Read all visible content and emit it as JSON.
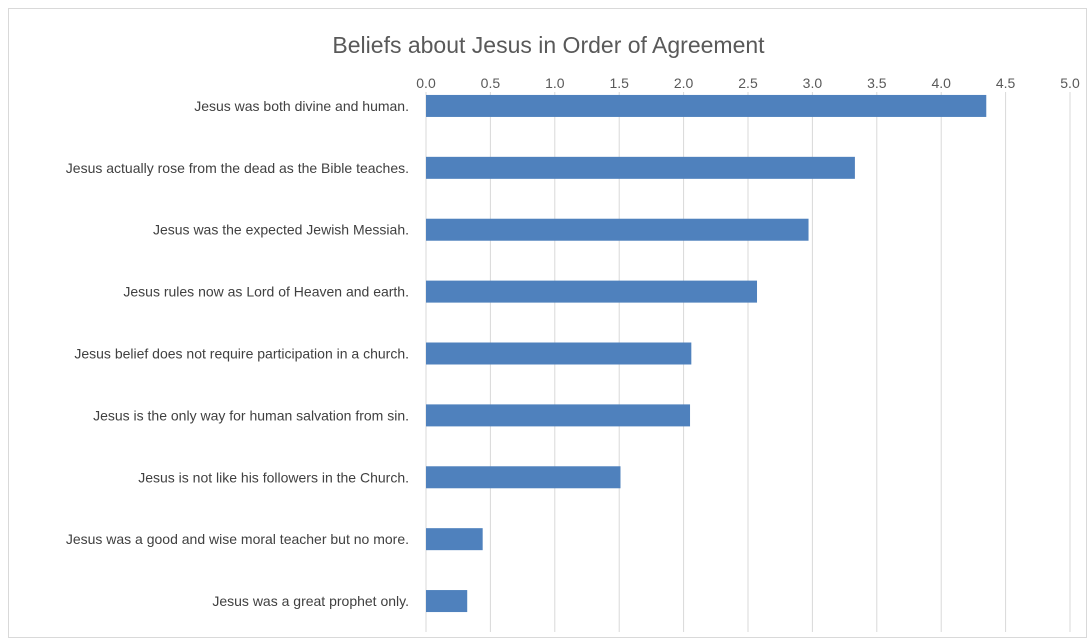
{
  "chart_data": {
    "type": "bar",
    "orientation": "horizontal",
    "title": "Beliefs about Jesus in Order of Agreement",
    "xlabel": "",
    "ylabel": "",
    "xlim": [
      0,
      5
    ],
    "ticks": [
      "0.0",
      "0.5",
      "1.0",
      "1.5",
      "2.0",
      "2.5",
      "3.0",
      "3.5",
      "4.0",
      "4.5",
      "5.0"
    ],
    "tick_axis_position": "top",
    "grid": true,
    "legend": "none",
    "bar_color": "#4f81bd",
    "categories": [
      "Jesus was both divine and human.",
      "Jesus actually rose from the dead as the Bible teaches.",
      "Jesus was the expected Jewish Messiah.",
      "Jesus rules now as Lord of Heaven and earth.",
      "Jesus belief does not require participation in a church.",
      "Jesus is the only way for human salvation from sin.",
      "Jesus is not like his followers in the Church.",
      "Jesus was a good and wise moral teacher but no more.",
      "Jesus was a great prophet only."
    ],
    "values": [
      4.35,
      3.33,
      2.97,
      2.57,
      2.06,
      2.05,
      1.51,
      0.44,
      0.32
    ]
  }
}
